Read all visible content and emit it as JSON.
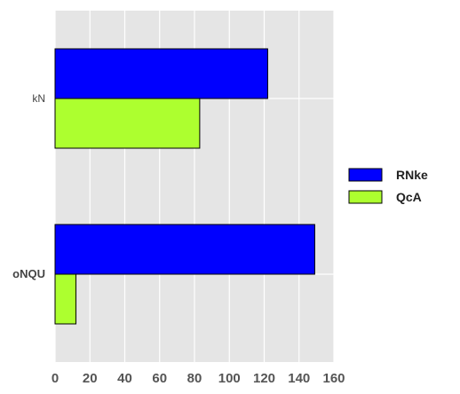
{
  "chart_data": {
    "type": "bar",
    "orientation": "horizontal",
    "categories": [
      "oNQU",
      "kN"
    ],
    "series": [
      {
        "name": "RNke",
        "values": [
          149,
          122
        ],
        "color": "#0000ff"
      },
      {
        "name": "QcA",
        "values": [
          12,
          83
        ],
        "color": "#adff2f"
      }
    ],
    "xlim": [
      0,
      160
    ],
    "xticks": [
      0,
      20,
      40,
      60,
      80,
      100,
      120,
      140,
      160
    ],
    "grid": true,
    "background": "#e5e5e5",
    "legend_position": "right"
  }
}
